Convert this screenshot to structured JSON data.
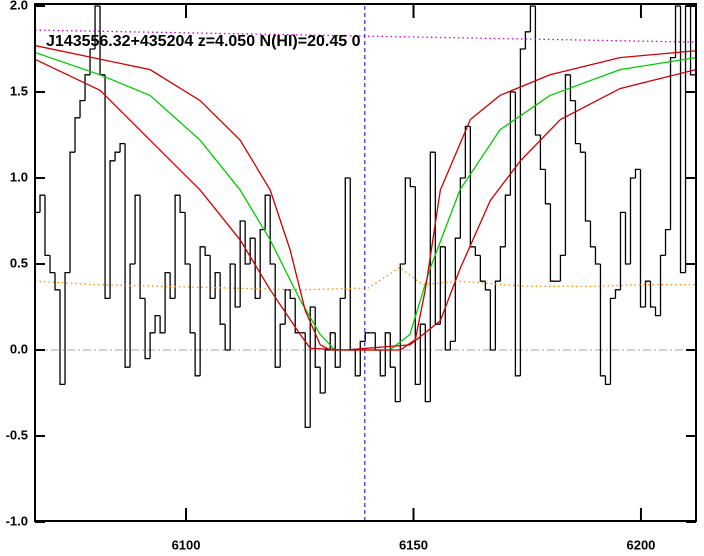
{
  "chart_data": {
    "type": "line",
    "annotation": "J143556.32+435204 z=4.050 N(HI)=20.45 0",
    "xlim": [
      6066.8,
      6212.1
    ],
    "ylim": [
      -1.0,
      2.0
    ],
    "xticks": [
      6100,
      6150,
      6200
    ],
    "yticks": [
      {
        "value": 2.0,
        "label": "2.0"
      },
      {
        "value": 1.5,
        "label": "1.5"
      },
      {
        "value": 1.0,
        "label": "1.0"
      },
      {
        "value": 0.5,
        "label": "0.5"
      },
      {
        "value": 0.0,
        "label": "0.0"
      },
      {
        "value": -0.5,
        "label": "-0.5"
      },
      {
        "value": -1.0,
        "label": "-1.0"
      }
    ],
    "vline_x": 6139.3,
    "hline_y": 0,
    "series": [
      {
        "color": "#000000",
        "step": true,
        "dash": "solid",
        "x": [
          6066.8,
          6067.9,
          6069.0,
          6070.1,
          6071.2,
          6072.3,
          6073.4,
          6074.5,
          6075.6,
          6076.7,
          6077.8,
          6078.9,
          6080.0,
          6081.1,
          6082.2,
          6083.3,
          6084.4,
          6085.5,
          6086.6,
          6087.7,
          6088.8,
          6089.9,
          6091.0,
          6092.1,
          6093.2,
          6094.3,
          6095.4,
          6096.5,
          6097.6,
          6098.7,
          6099.8,
          6100.9,
          6102.0,
          6103.1,
          6104.2,
          6105.3,
          6106.4,
          6107.5,
          6108.6,
          6109.7,
          6110.8,
          6111.9,
          6113.0,
          6114.1,
          6115.2,
          6116.3,
          6117.4,
          6118.5,
          6119.6,
          6120.7,
          6121.8,
          6122.9,
          6124.0,
          6125.1,
          6126.2,
          6127.3,
          6128.4,
          6129.5,
          6130.6,
          6131.7,
          6132.8,
          6133.9,
          6135.0,
          6136.1,
          6137.2,
          6138.3,
          6139.4,
          6140.5,
          6141.6,
          6142.7,
          6143.8,
          6144.9,
          6146.0,
          6147.1,
          6148.2,
          6149.3,
          6150.4,
          6151.5,
          6152.6,
          6153.7,
          6154.8,
          6155.9,
          6157.0,
          6158.1,
          6159.2,
          6160.3,
          6161.4,
          6162.5,
          6163.6,
          6164.7,
          6165.8,
          6166.9,
          6168.0,
          6169.1,
          6170.2,
          6171.3,
          6172.4,
          6173.5,
          6174.6,
          6175.7,
          6176.8,
          6177.9,
          6179.0,
          6180.1,
          6181.2,
          6182.3,
          6183.4,
          6184.5,
          6185.6,
          6186.7,
          6187.8,
          6188.9,
          6190.0,
          6191.1,
          6192.2,
          6193.3,
          6194.4,
          6195.5,
          6196.6,
          6197.7,
          6198.8,
          6199.9,
          6201.0,
          6202.1,
          6203.2,
          6204.3,
          6205.4,
          6206.5,
          6207.6,
          6208.7,
          6209.8,
          6210.9
        ],
        "values": [
          0.8,
          0.9,
          0.55,
          0.45,
          0.35,
          -0.2,
          0.45,
          1.15,
          1.35,
          1.45,
          1.6,
          1.75,
          2.0,
          1.6,
          0.3,
          1.1,
          1.15,
          1.2,
          -0.1,
          0.5,
          0.9,
          0.3,
          -0.05,
          0.1,
          0.2,
          0.1,
          0.45,
          0.3,
          0.9,
          0.8,
          0.5,
          0.1,
          -0.15,
          0.6,
          0.55,
          0.3,
          0.45,
          0.15,
          0.0,
          0.5,
          0.25,
          0.75,
          0.5,
          0.65,
          0.3,
          0.7,
          0.9,
          0.5,
          -0.1,
          0.15,
          0.35,
          0.3,
          0.1,
          0.1,
          -0.45,
          0.25,
          -0.1,
          -0.25,
          0.0,
          0.1,
          -0.1,
          0.3,
          1.0,
          0.0,
          -0.15,
          0.05,
          0.1,
          0.1,
          0.0,
          -0.15,
          0.1,
          -0.1,
          -0.3,
          0.5,
          1.0,
          0.95,
          -0.2,
          0.15,
          -0.3,
          1.15,
          0.15,
          0.6,
          0.0,
          0.05,
          0.65,
          1.0,
          1.3,
          0.6,
          0.55,
          0.4,
          0.35,
          0.0,
          0.4,
          0.6,
          0.9,
          1.5,
          -0.15,
          1.75,
          1.85,
          2.0,
          1.25,
          1.05,
          0.85,
          0.4,
          0.4,
          0.55,
          1.6,
          1.45,
          1.2,
          1.15,
          0.75,
          0.6,
          0.5,
          -0.15,
          -0.2,
          0.3,
          0.35,
          0.8,
          0.5,
          1.0,
          1.05,
          0.25,
          0.4,
          0.25,
          0.2,
          0.55,
          0.7,
          1.7,
          2.0,
          0.45,
          2.0,
          1.6
        ]
      },
      {
        "color": "#ff8c00",
        "step": false,
        "dash": "dotted",
        "x": [
          6066.8,
          6080,
          6095,
          6110,
          6125,
          6140,
          6147,
          6152,
          6160,
          6175,
          6190,
          6200,
          6212.1
        ],
        "values": [
          0.4,
          0.38,
          0.37,
          0.36,
          0.35,
          0.36,
          0.48,
          0.38,
          0.4,
          0.37,
          0.37,
          0.38,
          0.38
        ]
      },
      {
        "color": "#cc00cc",
        "step": false,
        "dash": "dotted",
        "x": [
          6066.8,
          6212.1
        ],
        "values": [
          1.86,
          1.79
        ]
      },
      {
        "color": "#00cc00",
        "step": false,
        "dash": "solid",
        "x": [
          6066.8,
          6081.1,
          6092.1,
          6103.1,
          6111.9,
          6118.5,
          6125.1,
          6129.5,
          6132.7,
          6144.8,
          6149.2,
          6153.6,
          6160.2,
          6169.0,
          6180.0,
          6195.4,
          6212.1
        ],
        "values": [
          1.73,
          1.6,
          1.48,
          1.22,
          0.93,
          0.64,
          0.29,
          0.09,
          0,
          0,
          0.09,
          0.47,
          0.93,
          1.28,
          1.48,
          1.63,
          1.7
        ]
      },
      {
        "color": "#cc0000",
        "step": false,
        "dash": "solid",
        "x": [
          6066.8,
          6092.1,
          6103.1,
          6111.9,
          6118.5,
          6122.9,
          6126.2,
          6129.5,
          6131.7,
          6147.1,
          6150.4,
          6152.6,
          6155.9,
          6162.5,
          6169.0,
          6180.0,
          6195.4,
          6212.1
        ],
        "values": [
          1.77,
          1.63,
          1.45,
          1.22,
          0.93,
          0.58,
          0.23,
          0.03,
          0,
          0,
          0.06,
          0.35,
          0.93,
          1.34,
          1.48,
          1.6,
          1.7,
          1.74
        ]
      },
      {
        "color": "#cc0000",
        "step": false,
        "dash": "solid",
        "x": [
          6066.8,
          6081.1,
          6092.1,
          6103.1,
          6111.9,
          6118.5,
          6125.1,
          6127.3,
          6134.9,
          6149.2,
          6155.9,
          6160.2,
          6166.9,
          6173.5,
          6182.3,
          6195.4,
          6212.1
        ],
        "values": [
          1.69,
          1.51,
          1.22,
          0.93,
          0.64,
          0.35,
          0.09,
          0.01,
          0,
          0.03,
          0.17,
          0.47,
          0.87,
          1.1,
          1.34,
          1.52,
          1.63
        ]
      }
    ]
  }
}
